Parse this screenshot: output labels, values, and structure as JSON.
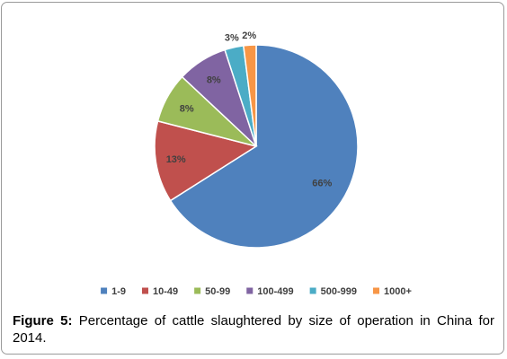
{
  "chart_data": {
    "type": "pie",
    "categories": [
      "1-9",
      "10-49",
      "50-99",
      "100-499",
      "500-999",
      "1000+"
    ],
    "values": [
      66,
      13,
      8,
      8,
      3,
      2
    ],
    "data_labels": [
      "66%",
      "13%",
      "8%",
      "8%",
      "3%",
      "2%"
    ],
    "colors": [
      "#4f81bd",
      "#c0504d",
      "#9bbb59",
      "#8064a2",
      "#4bacc6",
      "#f79646"
    ],
    "legend_position": "bottom"
  },
  "caption": {
    "label": "Figure 5:",
    "text": " Percentage of cattle slaughtered by size of operation in China for 2014."
  }
}
